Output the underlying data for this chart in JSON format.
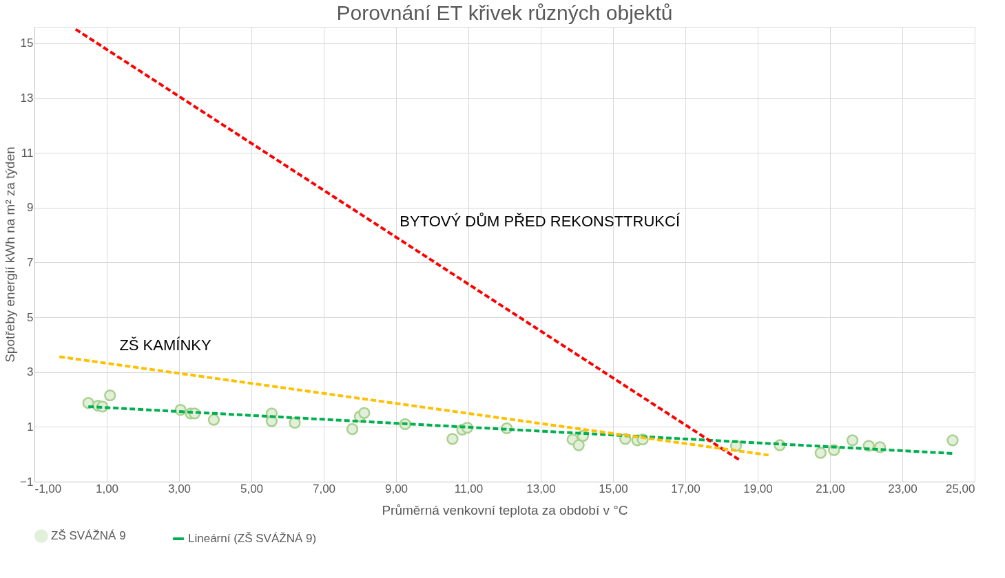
{
  "chart_data": {
    "type": "scatter",
    "title": "Porovnání ET křivek různých objektů",
    "xlabel": "Průměrná venkovní teplota za období v °C",
    "ylabel": "Spotřeby energií kWh na m² za týden",
    "xlim": [
      -1,
      25
    ],
    "xticks": [
      {
        "value": -1,
        "label": "-1,00"
      },
      {
        "value": 1,
        "label": "1,00"
      },
      {
        "value": 3,
        "label": "3,00"
      },
      {
        "value": 5,
        "label": "5,00"
      },
      {
        "value": 7,
        "label": "7,00"
      },
      {
        "value": 9,
        "label": "9,00"
      },
      {
        "value": 11,
        "label": "11,00"
      },
      {
        "value": 13,
        "label": "13,00"
      },
      {
        "value": 15,
        "label": "15,00"
      },
      {
        "value": 17,
        "label": "17,00"
      },
      {
        "value": 19,
        "label": "19,00"
      },
      {
        "value": 21,
        "label": "21,00"
      },
      {
        "value": 23,
        "label": "23,00"
      },
      {
        "value": 25,
        "label": "25,00"
      }
    ],
    "ylim": [
      -1,
      15.6
    ],
    "yticks": [
      -1,
      1,
      3,
      5,
      7,
      9,
      11,
      13,
      15
    ],
    "grid": true,
    "legend": "bottom",
    "annotations": [
      {
        "text": "BYTOVÝ DŮM PŘED REKONSTTRUKCÍ",
        "x": 8.34,
        "y": 8.49
      },
      {
        "text": "ZŠ KAMÍNKY",
        "x": 1.35,
        "y": 3.26
      }
    ],
    "series": [
      {
        "name": "ZŠ SVÁŽNÁ 9",
        "marker": "circle",
        "color": "#e2efda",
        "x": [
          0.49,
          0.76,
          0.88,
          1.09,
          3.04,
          3.32,
          3.43,
          3.96,
          5.56,
          5.56,
          6.2,
          7.79,
          8.0,
          8.12,
          9.25,
          10.56,
          10.83,
          10.97,
          12.06,
          13.88,
          14.05,
          14.17,
          15.34,
          15.67,
          15.82,
          18.4,
          19.61,
          20.74,
          21.11,
          21.62,
          22.07,
          22.38,
          24.39
        ],
        "values": [
          1.87,
          1.77,
          1.74,
          2.15,
          1.62,
          1.49,
          1.49,
          1.26,
          1.49,
          1.21,
          1.15,
          0.92,
          1.38,
          1.51,
          1.1,
          0.56,
          0.9,
          0.97,
          0.95,
          0.54,
          0.33,
          0.67,
          0.56,
          0.51,
          0.54,
          0.31,
          0.33,
          0.05,
          0.15,
          0.51,
          0.31,
          0.26,
          0.51
        ]
      },
      {
        "name": "Lineární (ZŠ SVÁŽNÁ 9)",
        "type": "line",
        "line_style": "dashed",
        "color": "#00b050",
        "x": [
          0.49,
          24.39
        ],
        "values": [
          1.74,
          0.03
        ]
      },
      {
        "type": "line",
        "line_style": "dashed",
        "color": "#ff0000",
        "x": [
          0.14,
          18.52
        ],
        "values": [
          15.51,
          -0.23
        ]
      },
      {
        "type": "line",
        "line_style": "dashed",
        "color": "#ffc000",
        "x": [
          -0.31,
          19.3
        ],
        "values": [
          3.56,
          -0.03
        ]
      }
    ]
  }
}
